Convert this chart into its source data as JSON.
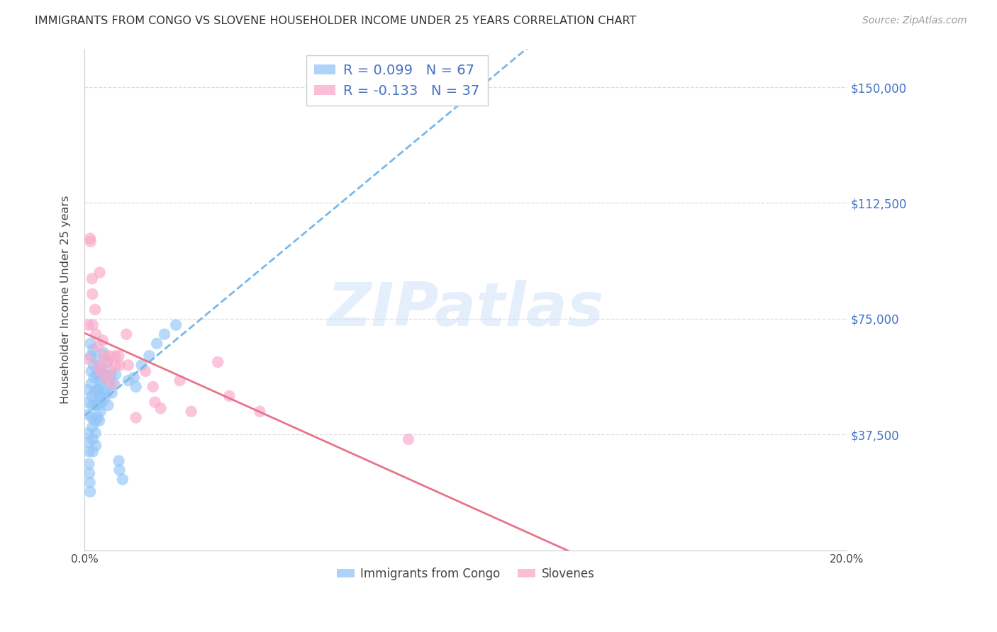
{
  "title": "IMMIGRANTS FROM CONGO VS SLOVENE HOUSEHOLDER INCOME UNDER 25 YEARS CORRELATION CHART",
  "source": "Source: ZipAtlas.com",
  "ylabel": "Householder Income Under 25 years",
  "xlim": [
    0.0,
    0.2
  ],
  "ylim": [
    0,
    162500
  ],
  "xticks": [
    0.0,
    0.02,
    0.04,
    0.06,
    0.08,
    0.1,
    0.12,
    0.14,
    0.16,
    0.18,
    0.2
  ],
  "yticks": [
    0,
    37500,
    75000,
    112500,
    150000
  ],
  "yticklabels_right": [
    "",
    "$37,500",
    "$75,000",
    "$112,500",
    "$150,000"
  ],
  "congo_R": 0.099,
  "congo_N": 67,
  "slovene_R": -0.133,
  "slovene_N": 37,
  "congo_color": "#92c5f7",
  "slovene_color": "#f9a8c9",
  "trend_congo_color": "#7ab8e8",
  "trend_slovene_color": "#e8748a",
  "legend_label_congo": "Immigrants from Congo",
  "legend_label_slovene": "Slovenes",
  "watermark": "ZIPatlas",
  "congo_x": [
    0.0008,
    0.0009,
    0.001,
    0.001,
    0.0011,
    0.0012,
    0.0012,
    0.0013,
    0.0014,
    0.0015,
    0.0016,
    0.0017,
    0.0018,
    0.0018,
    0.0019,
    0.002,
    0.002,
    0.0021,
    0.0022,
    0.0022,
    0.0023,
    0.0024,
    0.0025,
    0.0026,
    0.0027,
    0.0028,
    0.0029,
    0.003,
    0.0031,
    0.0032,
    0.0033,
    0.0034,
    0.0035,
    0.0036,
    0.0037,
    0.0038,
    0.0039,
    0.004,
    0.0041,
    0.0042,
    0.0043,
    0.0044,
    0.0045,
    0.0047,
    0.0049,
    0.005,
    0.0052,
    0.0055,
    0.0058,
    0.006,
    0.0062,
    0.0065,
    0.007,
    0.0072,
    0.0078,
    0.0082,
    0.009,
    0.0092,
    0.01,
    0.0115,
    0.013,
    0.0135,
    0.015,
    0.017,
    0.019,
    0.021,
    0.024
  ],
  "congo_y": [
    52000,
    48000,
    44000,
    38000,
    35000,
    32000,
    28000,
    25000,
    22000,
    19000,
    67000,
    63000,
    58000,
    54000,
    50000,
    47000,
    43000,
    40000,
    36000,
    32000,
    65000,
    60000,
    56000,
    51000,
    47000,
    42000,
    38000,
    34000,
    62000,
    57000,
    52000,
    48000,
    43000,
    57000,
    52000,
    47000,
    42000,
    55000,
    50000,
    45000,
    59000,
    54000,
    48000,
    57000,
    51000,
    64000,
    49000,
    57000,
    51000,
    61000,
    47000,
    54000,
    57000,
    51000,
    54000,
    57000,
    29000,
    26000,
    23000,
    55000,
    56000,
    53000,
    60000,
    63000,
    67000,
    70000,
    73000
  ],
  "slovene_x": [
    0.0009,
    0.001,
    0.0015,
    0.0016,
    0.002,
    0.0021,
    0.0022,
    0.0028,
    0.003,
    0.0035,
    0.0037,
    0.004,
    0.0042,
    0.0048,
    0.0052,
    0.0055,
    0.006,
    0.0065,
    0.0068,
    0.0072,
    0.008,
    0.0082,
    0.009,
    0.0093,
    0.011,
    0.0115,
    0.0135,
    0.016,
    0.018,
    0.0185,
    0.02,
    0.025,
    0.028,
    0.035,
    0.038,
    0.046,
    0.085
  ],
  "slovene_y": [
    62000,
    73000,
    101000,
    100000,
    88000,
    83000,
    73000,
    78000,
    70000,
    66000,
    60000,
    90000,
    58000,
    68000,
    63000,
    56000,
    61000,
    63000,
    58000,
    54000,
    63000,
    60000,
    63000,
    60000,
    70000,
    60000,
    43000,
    58000,
    53000,
    48000,
    46000,
    55000,
    45000,
    61000,
    50000,
    45000,
    36000
  ]
}
